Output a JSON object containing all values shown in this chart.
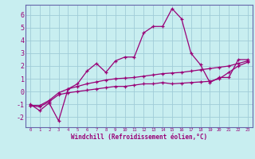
{
  "xlabel": "Windchill (Refroidissement éolien,°C)",
  "background_color": "#c8eef0",
  "grid_color": "#a0ccd8",
  "line_color": "#990077",
  "spine_color": "#6666aa",
  "x_ticks": [
    0,
    1,
    2,
    3,
    4,
    5,
    6,
    7,
    8,
    9,
    10,
    11,
    12,
    13,
    14,
    15,
    16,
    17,
    18,
    19,
    20,
    21,
    22,
    23
  ],
  "y_ticks": [
    -2,
    -1,
    0,
    1,
    2,
    3,
    4,
    5,
    6
  ],
  "xlim": [
    -0.5,
    23.5
  ],
  "ylim": [
    -2.8,
    6.8
  ],
  "series1_x": [
    0,
    1,
    2,
    3,
    4,
    5,
    6,
    7,
    8,
    9,
    10,
    11,
    12,
    13,
    14,
    15,
    16,
    17,
    18,
    19,
    20,
    21,
    22,
    23
  ],
  "series1_y": [
    -1.0,
    -1.5,
    -0.9,
    -2.3,
    0.2,
    0.6,
    1.6,
    2.2,
    1.5,
    2.4,
    2.7,
    2.7,
    4.6,
    5.1,
    5.1,
    6.5,
    5.7,
    3.0,
    2.1,
    0.7,
    1.1,
    1.1,
    2.5,
    2.5
  ],
  "series2_x": [
    0,
    1,
    2,
    3,
    4,
    5,
    6,
    7,
    8,
    9,
    10,
    11,
    12,
    13,
    14,
    15,
    16,
    17,
    18,
    19,
    20,
    21,
    22,
    23
  ],
  "series2_y": [
    -1.1,
    -1.2,
    -0.8,
    -0.25,
    -0.1,
    0.0,
    0.1,
    0.2,
    0.3,
    0.4,
    0.4,
    0.5,
    0.6,
    0.6,
    0.7,
    0.6,
    0.65,
    0.7,
    0.75,
    0.8,
    1.0,
    1.5,
    2.0,
    2.3
  ],
  "series3_x": [
    0,
    1,
    2,
    3,
    4,
    5,
    6,
    7,
    8,
    9,
    10,
    11,
    12,
    13,
    14,
    15,
    16,
    17,
    18,
    19,
    20,
    21,
    22,
    23
  ],
  "series3_y": [
    -1.1,
    -1.1,
    -0.7,
    -0.1,
    0.2,
    0.4,
    0.6,
    0.75,
    0.9,
    1.0,
    1.05,
    1.1,
    1.2,
    1.3,
    1.4,
    1.45,
    1.5,
    1.6,
    1.7,
    1.8,
    1.9,
    2.0,
    2.2,
    2.4
  ]
}
